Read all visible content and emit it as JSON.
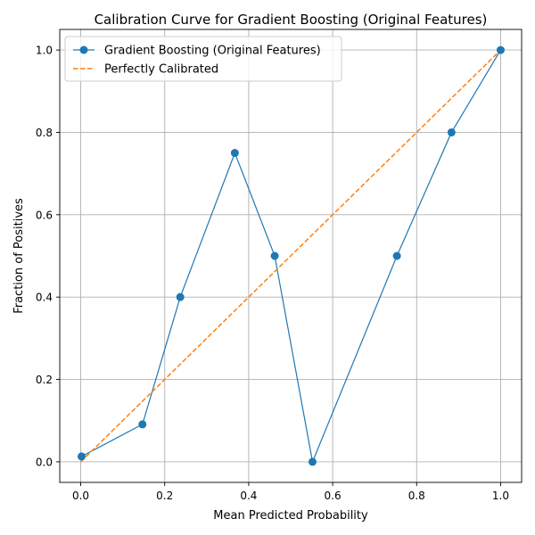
{
  "chart_data": {
    "type": "line",
    "title": "Calibration Curve for Gradient Boosting (Original Features)",
    "xlabel": "Mean Predicted Probability",
    "ylabel": "Fraction of Positives",
    "xlim": [
      -0.05,
      1.05
    ],
    "ylim": [
      -0.05,
      1.05
    ],
    "xticks": [
      "0.0",
      "0.2",
      "0.4",
      "0.6",
      "0.8",
      "1.0"
    ],
    "yticks": [
      "0.0",
      "0.2",
      "0.4",
      "0.6",
      "0.8",
      "1.0"
    ],
    "grid": true,
    "legend_position": "top-left",
    "series": [
      {
        "name": "Gradient Boosting (Original Features)",
        "style": "solid-with-markers",
        "color": "#1f77b4",
        "x": [
          0.002,
          0.147,
          0.237,
          0.367,
          0.462,
          0.552,
          0.753,
          0.883,
          1.0
        ],
        "y": [
          0.013,
          0.091,
          0.4,
          0.75,
          0.5,
          0.0,
          0.5,
          0.8,
          1.0
        ]
      },
      {
        "name": "Perfectly Calibrated",
        "style": "dashed",
        "color": "#ff7f0e",
        "x": [
          0.0,
          1.0
        ],
        "y": [
          0.0,
          1.0
        ]
      }
    ]
  }
}
